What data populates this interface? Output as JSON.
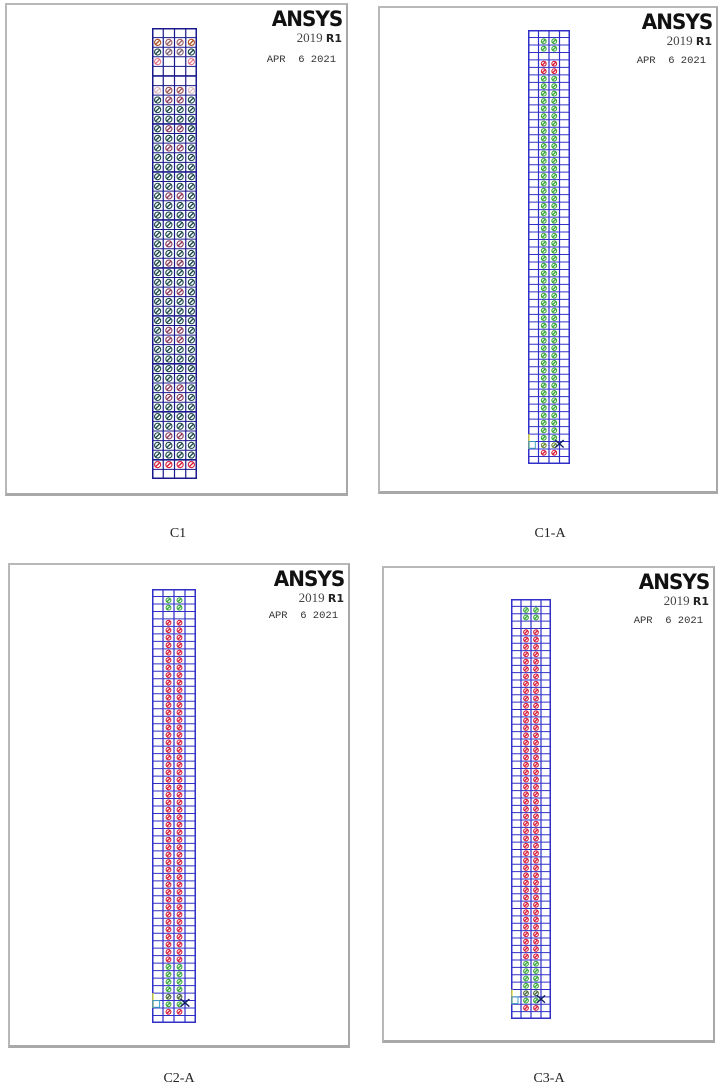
{
  "figure": {
    "panels": [
      {
        "id": "C1",
        "caption": "C1",
        "software": "ANSYS",
        "version_year": "2019",
        "version_release": "R1",
        "date": "APR  6 2021",
        "mesh": {
          "columns": 4,
          "rows": 47,
          "line_color": "#1a1a8c",
          "marker_scheme": "all-cells-mixed"
        }
      },
      {
        "id": "C1-A",
        "caption": "C1-A",
        "software": "ANSYS",
        "version_year": "2019",
        "version_release": "R1",
        "date": "APR  6 2021",
        "mesh": {
          "columns": 4,
          "rows": 58,
          "line_color": "#3030c8",
          "marker_scheme": "mostly-green-inner"
        }
      },
      {
        "id": "C2-A",
        "caption": "C2-A",
        "software": "ANSYS",
        "version_year": "2019",
        "version_release": "R1",
        "date": "APR  6 2021",
        "mesh": {
          "columns": 4,
          "rows": 58,
          "line_color": "#3030c8",
          "marker_scheme": "mostly-red-inner"
        }
      },
      {
        "id": "C3-A",
        "caption": "C3-A",
        "software": "ANSYS",
        "version_year": "2019",
        "version_release": "R1",
        "date": "APR  6 2021",
        "mesh": {
          "columns": 4,
          "rows": 57,
          "line_color": "#3030c8",
          "marker_scheme": "mostly-red-inner"
        }
      }
    ],
    "colors": {
      "mesh_blue": "#2a2ab8",
      "crack_red": "#d8203a",
      "crush_green": "#3aa83a",
      "dark_marker": "#1e4a4a",
      "panel_border": "#b0b0b0"
    }
  }
}
